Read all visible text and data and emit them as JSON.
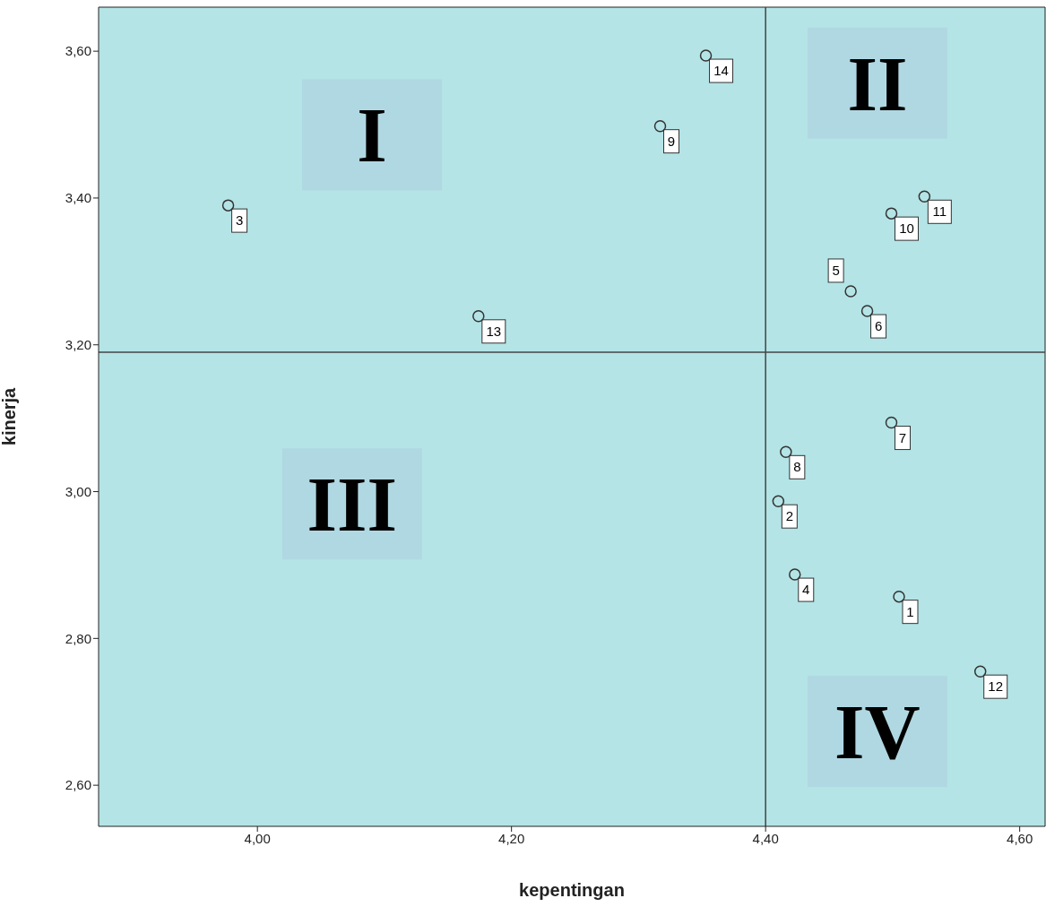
{
  "chart_data": {
    "type": "scatter",
    "xlabel": "kepentingan",
    "ylabel": "kinerja",
    "xlim": [
      3.875,
      4.62
    ],
    "ylim": [
      2.544,
      3.66
    ],
    "xticks": [
      {
        "value": 4.0,
        "label": "4,00"
      },
      {
        "value": 4.2,
        "label": "4,20"
      },
      {
        "value": 4.4,
        "label": "4,40"
      },
      {
        "value": 4.6,
        "label": "4,60"
      }
    ],
    "yticks": [
      {
        "value": 2.6,
        "label": "2,60"
      },
      {
        "value": 2.8,
        "label": "2,80"
      },
      {
        "value": 3.0,
        "label": "3,00"
      },
      {
        "value": 3.2,
        "label": "3,20"
      },
      {
        "value": 3.4,
        "label": "3,40"
      },
      {
        "value": 3.6,
        "label": "3,60"
      }
    ],
    "series": [
      {
        "color": "#333333",
        "x": [
          4.505,
          4.41,
          3.977,
          4.423,
          4.467,
          4.48,
          4.499,
          4.416,
          4.317,
          4.499,
          4.525,
          4.569,
          4.174,
          4.353
        ],
        "values": [
          2.857,
          2.987,
          3.39,
          2.887,
          3.273,
          3.246,
          3.094,
          3.054,
          3.498,
          3.379,
          3.402,
          2.755,
          3.239,
          3.594
        ]
      }
    ],
    "ref_lines": [
      {
        "axis": "x",
        "value": 4.4,
        "color": "#444444"
      },
      {
        "axis": "y",
        "value": 3.19,
        "color": "#444444"
      }
    ],
    "annotations": [
      "I",
      "II",
      "III",
      "IV",
      {
        "text": "1",
        "x": 4.505,
        "y": 2.857
      },
      {
        "text": "2",
        "x": 4.41,
        "y": 2.987
      },
      {
        "text": "3",
        "x": 3.977,
        "y": 3.39
      },
      {
        "text": "4",
        "x": 4.423,
        "y": 2.887
      },
      {
        "text": "5",
        "x": 4.467,
        "y": 3.273
      },
      {
        "text": "6",
        "x": 4.48,
        "y": 3.246
      },
      {
        "text": "7",
        "x": 4.499,
        "y": 3.094
      },
      {
        "text": "8",
        "x": 4.416,
        "y": 3.054
      },
      {
        "text": "9",
        "x": 4.317,
        "y": 3.498
      },
      {
        "text": "10",
        "x": 4.499,
        "y": 3.379
      },
      {
        "text": "11",
        "x": 4.525,
        "y": 3.402
      },
      {
        "text": "12",
        "x": 4.569,
        "y": 2.755
      },
      {
        "text": "13",
        "x": 4.174,
        "y": 3.239
      },
      {
        "text": "14",
        "x": 4.353,
        "y": 3.594
      }
    ],
    "marker": "circle",
    "grid": false,
    "legend": false
  }
}
